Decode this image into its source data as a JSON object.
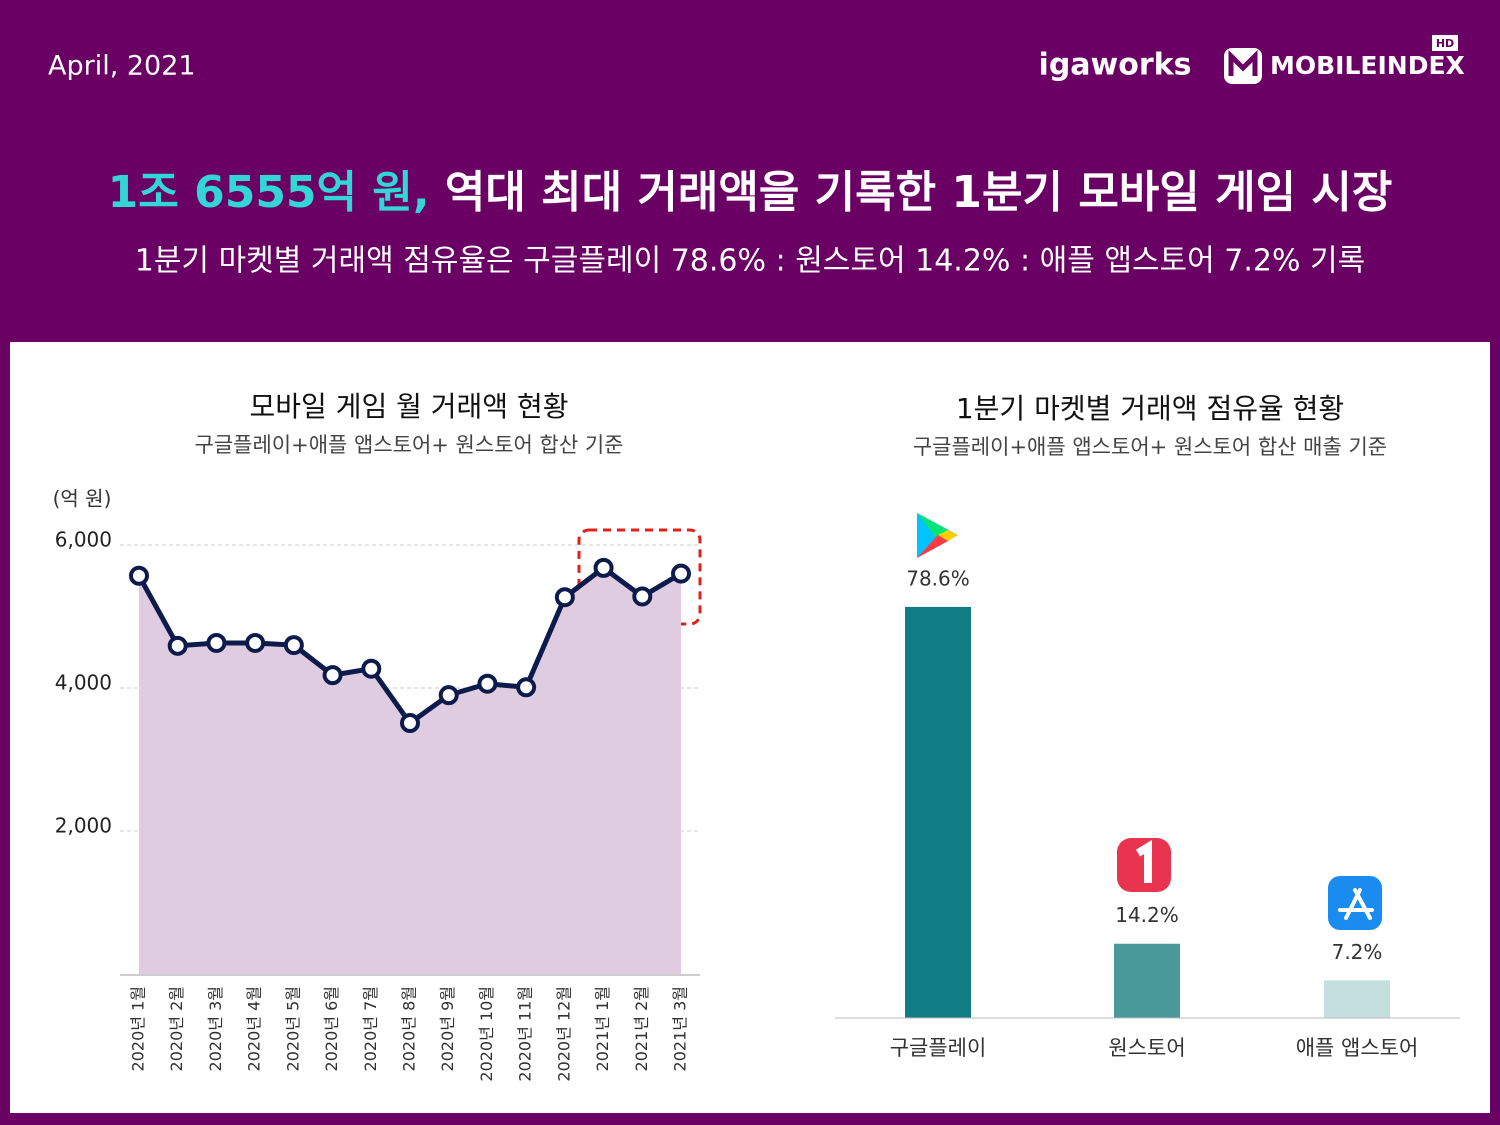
{
  "header": {
    "date": "April, 2021",
    "logo": "igaworks",
    "brand": "MOBILEINDEX",
    "brand_badge": "HD",
    "title_highlight": "1조 6555억 원,",
    "title": "역대 최대 거래액을 기록한 1분기 모바일 게임 시장",
    "subtitle": "1분기 마켓별 거래액 점유율은 구글플레이 78.6% : 원스토어 14.2% : 애플 앱스토어 7.2% 기록"
  },
  "chart_data": [
    {
      "type": "line",
      "title": "모바일 게임 월 거래액 현황",
      "subtitle": "구글플레이+애플 앱스토어+ 원스토어 합산 기준",
      "y_label": "(억 원)",
      "categories": [
        "2020년 1월",
        "2020년 2월",
        "2020년 3월",
        "2020년 4월",
        "2020년 5월",
        "2020년 6월",
        "2020년 7월",
        "2020년 8월",
        "2020년 9월",
        "2020년 10월",
        "2020년 11월",
        "2020년 12월",
        "2021년 1월",
        "2021년 2월",
        "2021년 3월"
      ],
      "values": [
        5570,
        4590,
        4630,
        4630,
        4600,
        4180,
        4270,
        3510,
        3900,
        4060,
        4010,
        5270,
        5680,
        5280,
        5600
      ],
      "color": "#0d1b4c",
      "area_color": "#dfcce0",
      "ylim": [
        0,
        6000
      ],
      "yticks": [
        {
          "value": 2000,
          "label": "2,000"
        },
        {
          "value": 4000,
          "label": "4,000"
        },
        {
          "value": 6000,
          "label": "6,000"
        }
      ],
      "grid": true
    },
    {
      "type": "bar",
      "title": "1분기 마켓별 거래액 점유율 현황",
      "subtitle": "구글플레이+애플 앱스토어+ 원스토어 합산 매출 기준",
      "categories": [
        "구글플레이",
        "원스토어",
        "애플 앱스토어"
      ],
      "values": [
        78.6,
        14.2,
        7.2
      ],
      "value_labels": [
        "78.6%",
        "14.2%",
        "7.2%"
      ],
      "colors": [
        "#0f7d83",
        "#4a9a9c",
        "#c5dede"
      ]
    }
  ]
}
